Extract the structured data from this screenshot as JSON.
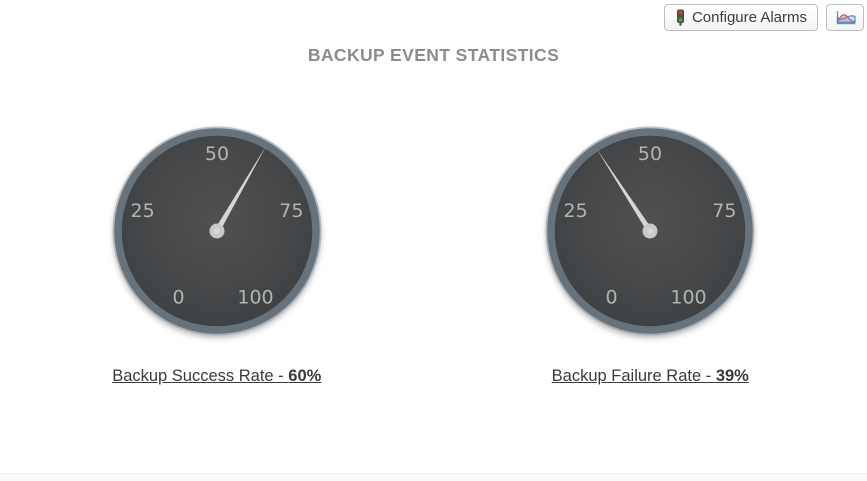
{
  "toolbar": {
    "configure_alarms_label": "Configure Alarms",
    "configure_alarms_icon": "traffic-light-icon",
    "chart_button_icon": "line-chart-icon"
  },
  "header": {
    "title": "BACKUP EVENT STATISTICS"
  },
  "chart_data": [
    {
      "type": "gauge",
      "title": "Backup Success Rate",
      "value": 60,
      "value_label": "60%",
      "label_prefix": "Backup Success Rate - ",
      "min": 0,
      "max": 100,
      "tick_labels": [
        "0",
        "25",
        "50",
        "75",
        "100"
      ],
      "sweep_degrees": 300,
      "start_angle_degrees": 240
    },
    {
      "type": "gauge",
      "title": "Backup Failure Rate",
      "value": 39,
      "value_label": "39%",
      "label_prefix": "Backup Failure Rate - ",
      "min": 0,
      "max": 100,
      "tick_labels": [
        "0",
        "25",
        "50",
        "75",
        "100"
      ],
      "sweep_degrees": 300,
      "start_angle_degrees": 240
    }
  ],
  "colors": {
    "title_text": "#8c8c8c",
    "gauge_rim": "#67727b",
    "gauge_outer_edge": "#9aa3ab",
    "gauge_face_center": "#4e5052",
    "gauge_face_edge": "#383b3d",
    "gauge_tick_text": "#b2b4b4",
    "needle": "#d6d6d6",
    "hub": "#c9c9c9",
    "label_text": "#3a3a3a",
    "traffic_red": "#db3b2d",
    "traffic_green": "#3ea744",
    "chart_icon_red": "#d0503c",
    "chart_icon_blue": "#5588cc",
    "bottom_strip": "#fafafa"
  }
}
